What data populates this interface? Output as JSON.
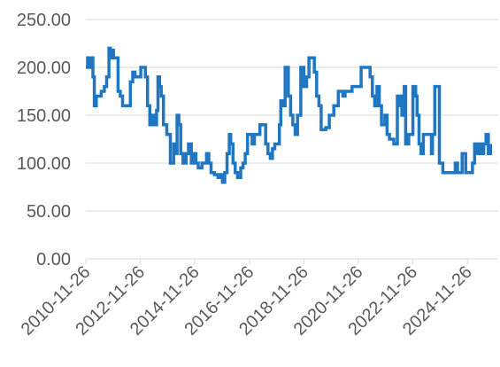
{
  "chart_data": {
    "type": "line",
    "title": "",
    "xlabel": "",
    "ylabel": "",
    "ylim": [
      0,
      250
    ],
    "xlim": [
      "2010-11-26",
      "2025-12-31"
    ],
    "grid": "horizontal",
    "legend": "none",
    "y_ticks": [
      "0.00",
      "50.00",
      "100.00",
      "150.00",
      "200.00",
      "250.00"
    ],
    "x_ticks": [
      "2010-11-26",
      "2012-11-26",
      "2014-11-26",
      "2016-11-26",
      "2018-11-26",
      "2020-11-26",
      "2022-11-26",
      "2024-11-26"
    ],
    "series": [
      {
        "color": "#1f77c4",
        "points": [
          [
            "2010-11-26",
            200
          ],
          [
            "2010-12-20",
            210
          ],
          [
            "2011-01-15",
            200
          ],
          [
            "2011-02-05",
            210
          ],
          [
            "2011-03-01",
            190
          ],
          [
            "2011-03-20",
            160
          ],
          [
            "2011-04-15",
            170
          ],
          [
            "2011-05-20",
            170
          ],
          [
            "2011-06-20",
            175
          ],
          [
            "2011-08-01",
            180
          ],
          [
            "2011-09-01",
            190
          ],
          [
            "2011-10-01",
            220
          ],
          [
            "2011-10-20",
            210
          ],
          [
            "2011-11-10",
            218
          ],
          [
            "2011-12-01",
            210
          ],
          [
            "2012-01-01",
            210
          ],
          [
            "2012-02-01",
            175
          ],
          [
            "2012-03-01",
            170
          ],
          [
            "2012-04-01",
            160
          ],
          [
            "2012-06-01",
            160
          ],
          [
            "2012-07-15",
            185
          ],
          [
            "2012-08-15",
            195
          ],
          [
            "2012-09-15",
            190
          ],
          [
            "2012-11-10",
            190
          ],
          [
            "2012-12-01",
            200
          ],
          [
            "2013-02-01",
            190
          ],
          [
            "2013-03-01",
            160
          ],
          [
            "2013-04-01",
            140
          ],
          [
            "2013-05-01",
            150
          ],
          [
            "2013-06-01",
            140
          ],
          [
            "2013-07-01",
            155
          ],
          [
            "2013-07-20",
            190
          ],
          [
            "2013-08-10",
            180
          ],
          [
            "2013-09-01",
            170
          ],
          [
            "2013-10-01",
            140
          ],
          [
            "2013-11-15",
            130
          ],
          [
            "2014-01-01",
            100
          ],
          [
            "2014-02-15",
            120
          ],
          [
            "2014-03-15",
            110
          ],
          [
            "2014-04-01",
            150
          ],
          [
            "2014-04-25",
            140
          ],
          [
            "2014-05-20",
            110
          ],
          [
            "2014-06-20",
            100
          ],
          [
            "2014-08-01",
            110
          ],
          [
            "2014-09-01",
            120
          ],
          [
            "2014-10-10",
            100
          ],
          [
            "2014-11-10",
            110
          ],
          [
            "2014-12-10",
            100
          ],
          [
            "2015-01-10",
            95
          ],
          [
            "2015-03-01",
            100
          ],
          [
            "2015-04-01",
            100
          ],
          [
            "2015-05-01",
            110
          ],
          [
            "2015-06-01",
            100
          ],
          [
            "2015-07-01",
            90
          ],
          [
            "2015-08-15",
            88
          ],
          [
            "2015-10-01",
            85
          ],
          [
            "2015-11-01",
            88
          ],
          [
            "2015-12-01",
            80
          ],
          [
            "2016-01-01",
            90
          ],
          [
            "2016-02-01",
            110
          ],
          [
            "2016-03-01",
            130
          ],
          [
            "2016-03-20",
            120
          ],
          [
            "2016-04-20",
            100
          ],
          [
            "2016-05-20",
            90
          ],
          [
            "2016-06-20",
            85
          ],
          [
            "2016-08-01",
            95
          ],
          [
            "2016-09-01",
            100
          ],
          [
            "2016-10-01",
            110
          ],
          [
            "2016-11-01",
            130
          ],
          [
            "2016-12-01",
            130
          ],
          [
            "2017-01-01",
            120
          ],
          [
            "2017-02-01",
            130
          ],
          [
            "2017-03-15",
            130
          ],
          [
            "2017-04-15",
            140
          ],
          [
            "2017-07-01",
            120
          ],
          [
            "2017-08-01",
            110
          ],
          [
            "2017-09-01",
            105
          ],
          [
            "2017-10-01",
            115
          ],
          [
            "2017-11-01",
            120
          ],
          [
            "2018-01-01",
            140
          ],
          [
            "2018-01-20",
            165
          ],
          [
            "2018-02-15",
            160
          ],
          [
            "2018-03-20",
            200
          ],
          [
            "2018-05-01",
            170
          ],
          [
            "2018-06-01",
            150
          ],
          [
            "2018-07-01",
            140
          ],
          [
            "2018-08-01",
            130
          ],
          [
            "2018-09-01",
            150
          ],
          [
            "2018-10-15",
            200
          ],
          [
            "2018-11-26",
            180
          ],
          [
            "2019-01-01",
            190
          ],
          [
            "2019-02-01",
            210
          ],
          [
            "2019-04-15",
            195
          ],
          [
            "2019-05-15",
            170
          ],
          [
            "2019-06-15",
            160
          ],
          [
            "2019-07-15",
            135
          ],
          [
            "2019-09-15",
            137
          ],
          [
            "2019-11-01",
            150
          ],
          [
            "2020-01-01",
            160
          ],
          [
            "2020-03-01",
            175
          ],
          [
            "2020-05-01",
            170
          ],
          [
            "2020-06-01",
            175
          ],
          [
            "2020-09-01",
            180
          ],
          [
            "2020-11-26",
            180
          ],
          [
            "2021-01-01",
            200
          ],
          [
            "2021-05-01",
            190
          ],
          [
            "2021-06-01",
            170
          ],
          [
            "2021-07-01",
            160
          ],
          [
            "2021-08-01",
            180
          ],
          [
            "2021-09-01",
            160
          ],
          [
            "2021-10-01",
            140
          ],
          [
            "2021-11-15",
            150
          ],
          [
            "2021-12-15",
            130
          ],
          [
            "2022-01-15",
            125
          ],
          [
            "2022-03-15",
            120
          ],
          [
            "2022-05-01",
            170
          ],
          [
            "2022-05-20",
            160
          ],
          [
            "2022-06-10",
            170
          ],
          [
            "2022-07-01",
            150
          ],
          [
            "2022-08-01",
            180
          ],
          [
            "2022-08-20",
            120
          ],
          [
            "2022-10-01",
            130
          ],
          [
            "2022-11-26",
            180
          ],
          [
            "2023-01-01",
            170
          ],
          [
            "2023-01-20",
            150
          ],
          [
            "2023-02-15",
            120
          ],
          [
            "2023-03-15",
            110
          ],
          [
            "2023-04-15",
            130
          ],
          [
            "2023-08-01",
            110
          ],
          [
            "2023-08-15",
            130
          ],
          [
            "2023-09-15",
            180
          ],
          [
            "2023-11-15",
            100
          ],
          [
            "2024-01-01",
            90
          ],
          [
            "2024-02-15",
            90
          ],
          [
            "2024-04-01",
            90
          ],
          [
            "2024-05-15",
            90
          ],
          [
            "2024-06-15",
            100
          ],
          [
            "2024-07-15",
            90
          ],
          [
            "2024-08-15",
            90
          ],
          [
            "2024-09-15",
            110
          ],
          [
            "2024-11-01",
            90
          ],
          [
            "2024-11-26",
            90
          ],
          [
            "2025-01-01",
            90
          ],
          [
            "2025-02-01",
            100
          ],
          [
            "2025-03-01",
            120
          ],
          [
            "2025-04-01",
            110
          ],
          [
            "2025-05-01",
            120
          ],
          [
            "2025-06-01",
            110
          ],
          [
            "2025-07-01",
            120
          ],
          [
            "2025-08-01",
            130
          ],
          [
            "2025-09-01",
            110
          ],
          [
            "2025-10-01",
            120
          ]
        ]
      }
    ]
  }
}
